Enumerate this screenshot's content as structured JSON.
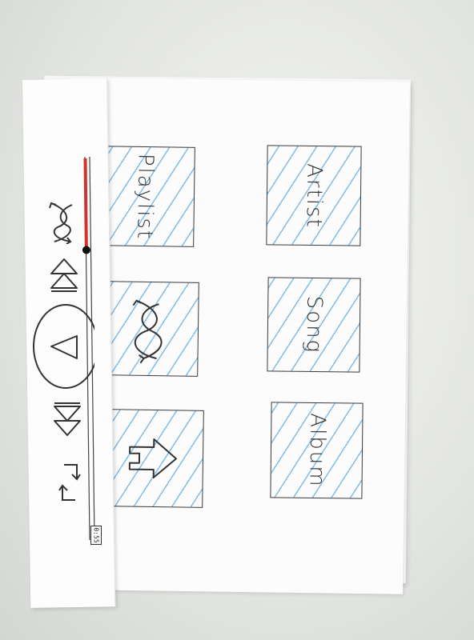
{
  "player": {
    "elapsed_time": "0:55",
    "progress": 0.24,
    "colors": {
      "progress_played": "#d0342c",
      "ink": "#333333"
    },
    "controls": [
      {
        "name": "shuffle-button",
        "icon": "shuffle-icon"
      },
      {
        "name": "previous-button",
        "icon": "previous-icon"
      },
      {
        "name": "play-button",
        "icon": "play-icon"
      },
      {
        "name": "next-button",
        "icon": "next-icon"
      },
      {
        "name": "repeat-button",
        "icon": "repeat-icon"
      }
    ]
  },
  "library": {
    "tiles": [
      {
        "name": "tile-playlist",
        "label": "Playlist"
      },
      {
        "name": "tile-artist",
        "label": "Artist"
      },
      {
        "name": "tile-shuffle",
        "icon": "shuffle-icon"
      },
      {
        "name": "tile-song",
        "label": "Song"
      },
      {
        "name": "tile-home",
        "icon": "home-icon"
      },
      {
        "name": "tile-album",
        "label": "Album"
      }
    ],
    "hatch_color": "#58a8e4"
  }
}
